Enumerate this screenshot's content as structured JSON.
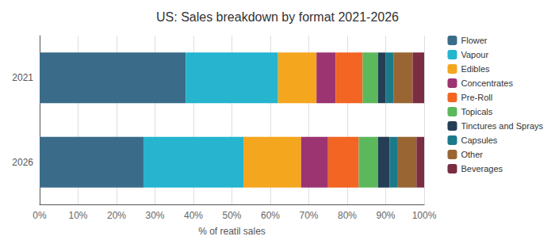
{
  "chart_data": {
    "type": "bar",
    "orientation": "horizontal",
    "stacked": true,
    "title": "US: Sales breakdown by format 2021-2026",
    "xlabel": "% of reatil sales",
    "categories": [
      "2021",
      "2026"
    ],
    "series": [
      {
        "name": "Flower",
        "color": "#3a6c8a",
        "values": [
          38,
          27
        ]
      },
      {
        "name": "Vapour",
        "color": "#26b4cf",
        "values": [
          24,
          26
        ]
      },
      {
        "name": "Edibles",
        "color": "#f4a61e",
        "values": [
          10,
          15
        ]
      },
      {
        "name": "Concentrates",
        "color": "#9c3472",
        "values": [
          5,
          7
        ]
      },
      {
        "name": "Pre-Roll",
        "color": "#f26522",
        "values": [
          7,
          8
        ]
      },
      {
        "name": "Topicals",
        "color": "#5cb85c",
        "values": [
          4,
          5
        ]
      },
      {
        "name": "Tinctures and Sprays",
        "color": "#243e55",
        "values": [
          2,
          3
        ]
      },
      {
        "name": "Capsules",
        "color": "#1a7a8a",
        "values": [
          2,
          2
        ]
      },
      {
        "name": "Other",
        "color": "#996633",
        "values": [
          5,
          5
        ]
      },
      {
        "name": "Beverages",
        "color": "#7b2d42",
        "values": [
          3,
          2
        ]
      }
    ],
    "xlim": [
      0,
      100
    ],
    "xticks": [
      {
        "value": 0,
        "label": "0%"
      },
      {
        "value": 10,
        "label": "10%"
      },
      {
        "value": 20,
        "label": "20%"
      },
      {
        "value": 30,
        "label": "30%"
      },
      {
        "value": 40,
        "label": "40%"
      },
      {
        "value": 50,
        "label": "50%"
      },
      {
        "value": 60,
        "label": "60%"
      },
      {
        "value": 70,
        "label": "70%"
      },
      {
        "value": 80,
        "label": "80%"
      },
      {
        "value": 90,
        "label": "90%"
      },
      {
        "value": 100,
        "label": "100%"
      }
    ],
    "grid": true,
    "legend": "right"
  }
}
